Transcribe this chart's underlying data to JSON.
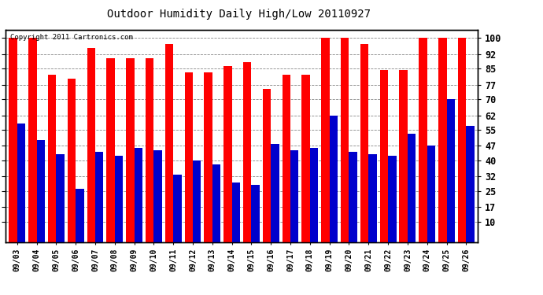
{
  "title": "Outdoor Humidity Daily High/Low 20110927",
  "copyright": "Copyright 2011 Cartronics.com",
  "dates": [
    "09/03",
    "09/04",
    "09/05",
    "09/06",
    "09/07",
    "09/08",
    "09/09",
    "09/10",
    "09/11",
    "09/12",
    "09/13",
    "09/14",
    "09/15",
    "09/16",
    "09/17",
    "09/18",
    "09/19",
    "09/20",
    "09/21",
    "09/22",
    "09/23",
    "09/24",
    "09/25",
    "09/26"
  ],
  "highs": [
    100,
    100,
    82,
    80,
    95,
    90,
    90,
    90,
    97,
    83,
    83,
    86,
    88,
    75,
    82,
    82,
    100,
    100,
    97,
    84,
    84,
    100,
    100,
    100
  ],
  "lows": [
    58,
    50,
    43,
    26,
    44,
    42,
    46,
    45,
    33,
    40,
    38,
    29,
    28,
    48,
    45,
    46,
    62,
    44,
    43,
    42,
    53,
    47,
    70,
    57
  ],
  "high_color": "#ff0000",
  "low_color": "#0000cc",
  "bg_color": "#ffffff",
  "grid_color": "#888888",
  "yticks": [
    10,
    17,
    25,
    32,
    40,
    47,
    55,
    62,
    70,
    77,
    85,
    92,
    100
  ],
  "ylim": [
    0,
    104
  ],
  "bar_width": 0.42
}
